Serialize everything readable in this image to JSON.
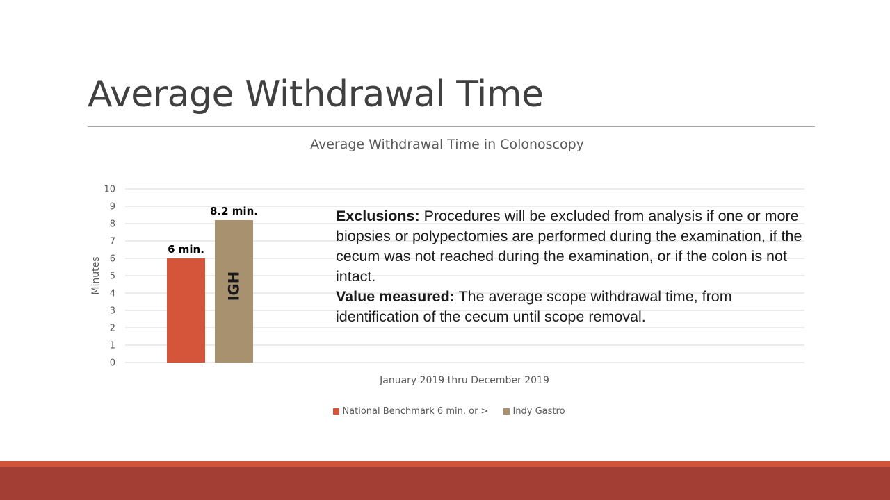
{
  "slide": {
    "title": "Average Withdrawal Time"
  },
  "note": {
    "exclusions_label": "Exclusions:",
    "exclusions_text": " Procedures will be excluded from analysis if one or more biopsies or polypectomies are performed during the examination, if the cecum was not reached during the examination, or if the colon is not intact.",
    "value_label": "Value measured:",
    "value_text": " The average scope withdrawal time, from identification of the cecum until scope removal."
  },
  "colors": {
    "accent": "#d0533a",
    "footer": "#a23e34",
    "benchmark": "#d4553a",
    "indy": "#a8916f"
  },
  "chart_data": {
    "type": "bar",
    "title": "Average Withdrawal Time in Colonoscopy",
    "categories": [
      "January 2019 thru December 2019"
    ],
    "series": [
      {
        "name": "National Benchmark 6 min. or >",
        "values": [
          6
        ],
        "data_label": "6 min.",
        "color": "#d4553a"
      },
      {
        "name": "Indy Gastro",
        "values": [
          8.2
        ],
        "data_label": "8.2 min.",
        "inner_label": "IGH",
        "color": "#a8916f"
      }
    ],
    "xlabel": "",
    "ylabel": "Minutes",
    "ylim": [
      0,
      10
    ],
    "yticks": [
      "0",
      "1",
      "2",
      "3",
      "4",
      "5",
      "6",
      "7",
      "8",
      "9",
      "10"
    ],
    "grid": true,
    "legend": "bottom"
  }
}
